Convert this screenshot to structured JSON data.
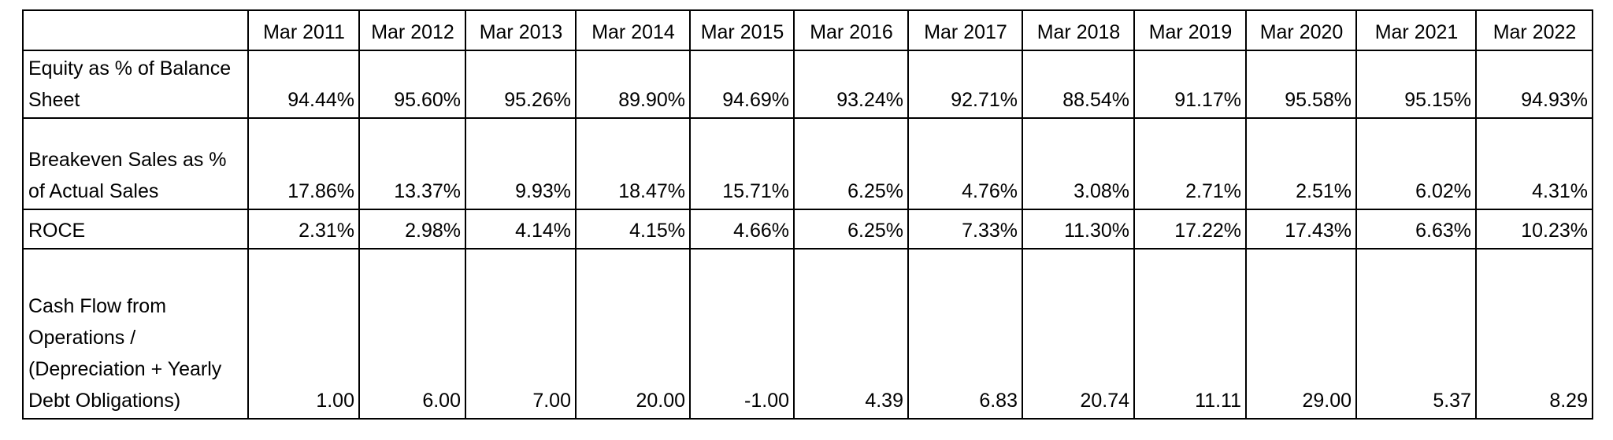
{
  "table": {
    "corner": "",
    "columns": [
      "Mar 2011",
      "Mar 2012",
      "Mar 2013",
      "Mar 2014",
      "Mar 2015",
      "Mar 2016",
      "Mar 2017",
      "Mar 2018",
      "Mar 2019",
      "Mar 2020",
      "Mar 2021",
      "Mar 2022"
    ],
    "rows": [
      {
        "label_lines": [
          "Equity as % of Balance",
          "Sheet"
        ],
        "values": [
          "94.44%",
          "95.60%",
          "95.26%",
          "89.90%",
          "94.69%",
          "93.24%",
          "92.71%",
          "88.54%",
          "91.17%",
          "95.58%",
          "95.15%",
          "94.93%"
        ]
      },
      {
        "label_lines": [
          "Breakeven Sales as %",
          "of Actual Sales"
        ],
        "values": [
          "17.86%",
          "13.37%",
          "9.93%",
          "18.47%",
          "15.71%",
          "6.25%",
          "4.76%",
          "3.08%",
          "2.71%",
          "2.51%",
          "6.02%",
          "4.31%"
        ]
      },
      {
        "label_lines": [
          "ROCE"
        ],
        "values": [
          "2.31%",
          "2.98%",
          "4.14%",
          "4.15%",
          "4.66%",
          "6.25%",
          "7.33%",
          "11.30%",
          "17.22%",
          "17.43%",
          "6.63%",
          "10.23%"
        ]
      },
      {
        "label_lines": [
          "Cash Flow from",
          "Operations /",
          "(Depreciation + Yearly",
          "Debt Obligations)"
        ],
        "values": [
          "1.00",
          "6.00",
          "7.00",
          "20.00",
          "-1.00",
          "4.39",
          "6.83",
          "20.74",
          "11.11",
          "29.00",
          "5.37",
          "8.29"
        ]
      }
    ]
  }
}
